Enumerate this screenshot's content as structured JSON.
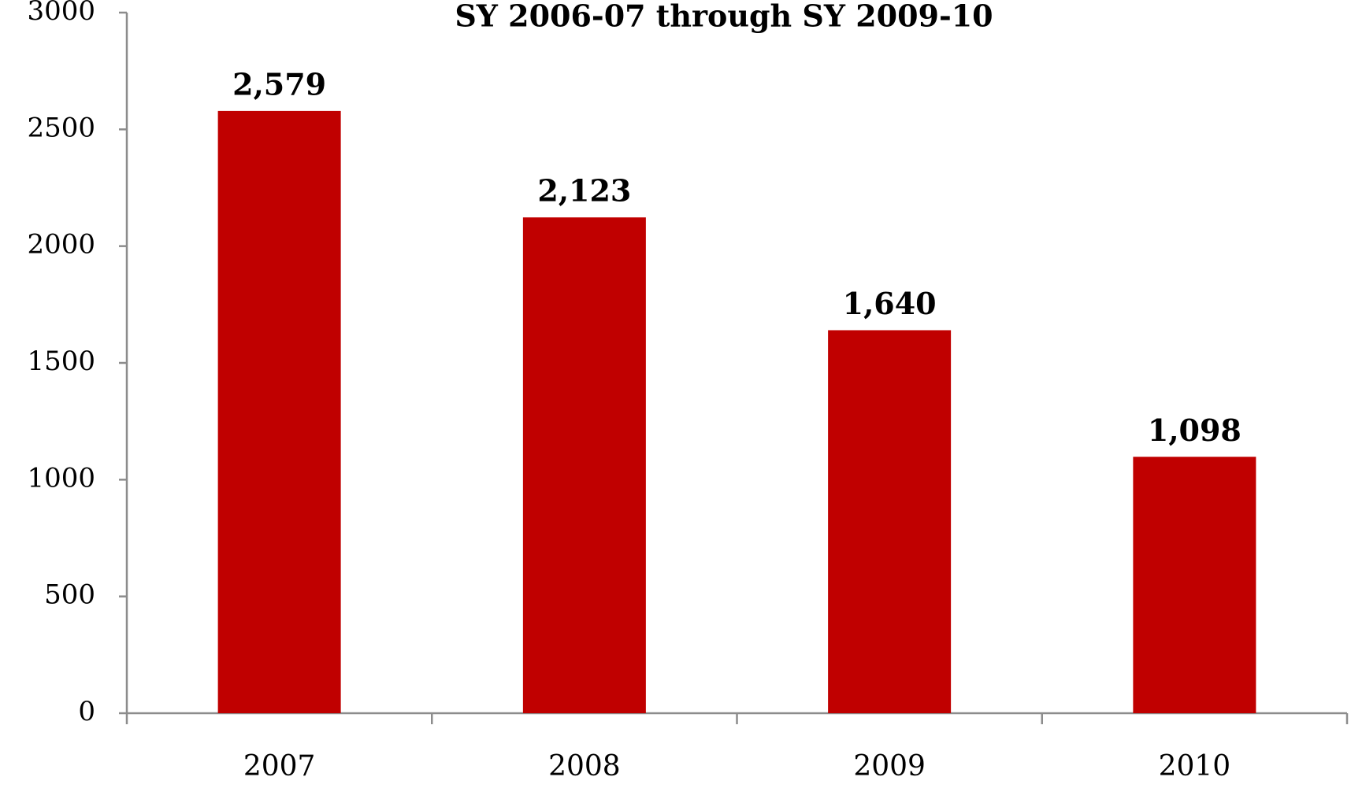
{
  "chart_data": {
    "type": "bar",
    "title": "SY 2006-07 through SY 2009-10",
    "categories": [
      "2007",
      "2008",
      "2009",
      "2010"
    ],
    "values": [
      2579,
      2123,
      1640,
      1098
    ],
    "value_labels": [
      "2,579",
      "2,123",
      "1,640",
      "1,098"
    ],
    "color": "#c00000",
    "ylim": [
      0,
      3000
    ],
    "yticks": [
      0,
      500,
      1000,
      1500,
      2000,
      2500,
      3000
    ],
    "grid": false
  }
}
